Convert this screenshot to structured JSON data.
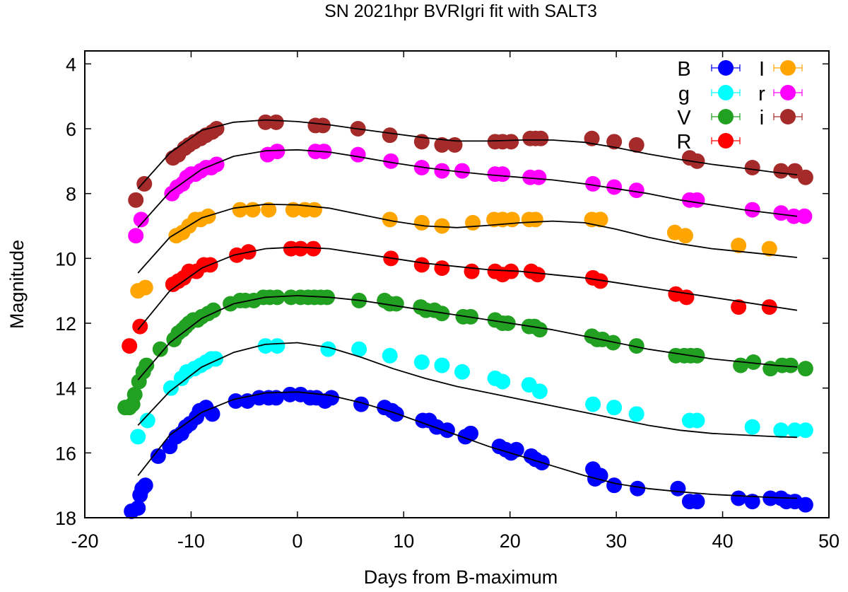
{
  "chart_data": {
    "type": "scatter",
    "title": "SN 2021hpr BVRIgri fit with SALT3",
    "xlabel": "Days from B-maximum",
    "ylabel": "Magnitude",
    "xlim": [
      -20,
      50
    ],
    "ylim": [
      18,
      3.6
    ],
    "y_inverted": true,
    "xticks": [
      -20,
      -10,
      0,
      10,
      20,
      30,
      40,
      50
    ],
    "yticks": [
      4,
      6,
      8,
      10,
      12,
      14,
      16,
      18
    ],
    "grid": false,
    "legend_position": "top-right",
    "fit_line_color": "#000000",
    "series": [
      {
        "name": "B",
        "color": "#0000ff",
        "x": [
          -15.6,
          -15.0,
          -14.8,
          -14.6,
          -14.3,
          -13.1,
          -12.0,
          -11.4,
          -10.9,
          -10.5,
          -10.1,
          -9.5,
          -9.2,
          -8.6,
          -8.0,
          -5.8,
          -4.7,
          -3.6,
          -2.7,
          -2.0,
          -0.7,
          0.3,
          1.2,
          1.8,
          2.6,
          3.2,
          6.0,
          8.2,
          8.9,
          9.3,
          11.8,
          12.4,
          13.1,
          14.1,
          15.8,
          16.3,
          19.0,
          19.6,
          20.1,
          20.6,
          22.0,
          22.4,
          23.0,
          27.8,
          28.0,
          28.5,
          29.8,
          32.0,
          35.8,
          36.9,
          37.6,
          41.5,
          42.8,
          44.5,
          45.5,
          46.0,
          46.8,
          47.8
        ],
        "y": [
          17.8,
          17.7,
          17.3,
          17.1,
          17.0,
          16.1,
          15.8,
          15.5,
          15.4,
          15.2,
          15.1,
          14.9,
          14.7,
          14.6,
          14.8,
          14.4,
          14.4,
          14.3,
          14.3,
          14.3,
          14.2,
          14.2,
          14.3,
          14.3,
          14.4,
          14.3,
          14.5,
          14.6,
          14.7,
          14.8,
          15.0,
          15.0,
          15.2,
          15.3,
          15.5,
          15.4,
          15.8,
          15.9,
          16.0,
          15.9,
          16.1,
          16.2,
          16.3,
          16.5,
          16.8,
          16.7,
          17.0,
          17.1,
          17.1,
          17.5,
          17.5,
          17.4,
          17.5,
          17.4,
          17.4,
          17.5,
          17.5,
          17.6
        ]
      },
      {
        "name": "g",
        "color": "#00ffff",
        "x": [
          -15.0,
          -14.1,
          -11.9,
          -10.9,
          -10.4,
          -9.7,
          -9.1,
          -8.6,
          -8.1,
          -7.7,
          -3.0,
          -1.9,
          2.9,
          5.8,
          8.7,
          11.7,
          13.6,
          15.5,
          18.6,
          19.3,
          21.8,
          22.8,
          27.8,
          29.8,
          31.9,
          36.9,
          37.6,
          42.8,
          45.5,
          46.8,
          47.8
        ],
        "y": [
          15.5,
          15.0,
          14.0,
          13.7,
          13.5,
          13.4,
          13.3,
          13.2,
          13.1,
          13.1,
          12.7,
          12.7,
          12.8,
          12.8,
          13.0,
          13.2,
          13.3,
          13.5,
          13.7,
          13.8,
          13.9,
          14.1,
          14.5,
          14.6,
          14.8,
          15.0,
          15.0,
          15.2,
          15.3,
          15.3,
          15.3
        ],
        "fit_x": [
          -15,
          -12,
          -9,
          -6,
          -3,
          0,
          3,
          6,
          9,
          12,
          15,
          18,
          21,
          24,
          27,
          30,
          33,
          36,
          39,
          42,
          45,
          47
        ],
        "fit_y": [
          15.15,
          14.1,
          13.35,
          12.9,
          12.65,
          12.6,
          12.75,
          13.05,
          13.4,
          13.7,
          13.95,
          14.15,
          14.35,
          14.55,
          14.75,
          14.95,
          15.15,
          15.3,
          15.4,
          15.45,
          15.5,
          15.52
        ]
      },
      {
        "name": "V",
        "color": "#22a022",
        "x": [
          -16.2,
          -15.8,
          -15.5,
          -15.3,
          -14.9,
          -14.5,
          -14.2,
          -12.9,
          -11.6,
          -11.2,
          -10.8,
          -10.5,
          -10.2,
          -9.8,
          -9.4,
          -9.0,
          -8.4,
          -7.9,
          -6.3,
          -5.4,
          -4.9,
          -4.1,
          -3.2,
          -2.6,
          -1.9,
          -0.6,
          0.3,
          1.0,
          1.6,
          2.2,
          2.8,
          5.8,
          8.2,
          8.7,
          9.3,
          11.6,
          12.1,
          12.9,
          13.6,
          15.6,
          16.3,
          18.6,
          19.3,
          19.8,
          21.8,
          22.3,
          22.8,
          27.7,
          28.2,
          28.7,
          29.7,
          31.9,
          35.6,
          36.4,
          37.0,
          37.6,
          41.7,
          42.9,
          44.5,
          45.6,
          46.4,
          47.8
        ],
        "y": [
          14.6,
          14.6,
          14.5,
          14.2,
          13.8,
          13.5,
          13.3,
          12.8,
          12.5,
          12.3,
          12.2,
          12.1,
          12.0,
          11.9,
          11.9,
          11.8,
          11.7,
          11.6,
          11.4,
          11.3,
          11.3,
          11.3,
          11.2,
          11.2,
          11.2,
          11.2,
          11.2,
          11.2,
          11.2,
          11.2,
          11.2,
          11.3,
          11.3,
          11.4,
          11.4,
          11.5,
          11.6,
          11.6,
          11.7,
          11.8,
          11.8,
          11.9,
          12.0,
          12.0,
          12.1,
          12.1,
          12.2,
          12.4,
          12.5,
          12.5,
          12.6,
          12.7,
          13.0,
          13.0,
          13.0,
          13.0,
          13.3,
          13.2,
          13.4,
          13.3,
          13.3,
          13.4
        ],
        "fit_x": [
          -15,
          -12,
          -9,
          -6,
          -3,
          0,
          3,
          6,
          9,
          12,
          15,
          18,
          21,
          24,
          27,
          30,
          33,
          36,
          39,
          42,
          45,
          47
        ],
        "fit_y": [
          13.75,
          12.6,
          11.85,
          11.4,
          11.2,
          11.15,
          11.2,
          11.3,
          11.45,
          11.6,
          11.75,
          11.9,
          12.05,
          12.2,
          12.4,
          12.6,
          12.8,
          12.95,
          13.1,
          13.2,
          13.3,
          13.35
        ]
      },
      {
        "name": "R",
        "color": "#ff0000",
        "x": [
          -15.8,
          -14.8,
          -11.7,
          -11.2,
          -10.7,
          -10.2,
          -9.5,
          -8.8,
          -8.2,
          -5.7,
          -4.6,
          -0.6,
          0.3,
          1.5,
          8.8,
          11.7,
          13.6,
          16.4,
          18.6,
          19.3,
          20.1,
          22.0,
          22.6,
          27.8,
          28.5,
          35.6,
          36.6,
          41.5,
          44.4
        ],
        "y": [
          12.7,
          12.1,
          10.8,
          10.7,
          10.6,
          10.4,
          10.4,
          10.2,
          10.2,
          9.9,
          9.8,
          9.7,
          9.7,
          9.7,
          10.0,
          10.2,
          10.3,
          10.4,
          10.4,
          10.5,
          10.4,
          10.4,
          10.5,
          10.6,
          10.7,
          11.1,
          11.2,
          11.5,
          11.5
        ],
        "fit_x": [
          -15,
          -12,
          -9,
          -6,
          -3,
          0,
          3,
          6,
          9,
          12,
          15,
          18,
          21,
          24,
          27,
          30,
          33,
          36,
          39,
          42,
          45,
          47
        ],
        "fit_y": [
          12.2,
          11.0,
          10.3,
          9.9,
          9.7,
          9.65,
          9.7,
          9.85,
          10.0,
          10.15,
          10.25,
          10.35,
          10.4,
          10.5,
          10.6,
          10.75,
          10.9,
          11.05,
          11.2,
          11.35,
          11.5,
          11.6
        ]
      },
      {
        "name": "I",
        "color": "#ffa500",
        "x": [
          -15.0,
          -14.3,
          -11.4,
          -10.8,
          -10.2,
          -9.6,
          -9.1,
          -8.4,
          -5.4,
          -4.2,
          -2.7,
          -0.4,
          0.7,
          1.6,
          8.7,
          11.7,
          13.6,
          16.5,
          18.5,
          19.3,
          20.2,
          21.8,
          22.4,
          27.7,
          28.5,
          35.5,
          36.5,
          41.5,
          44.4
        ],
        "y": [
          11.0,
          10.9,
          9.3,
          9.2,
          9.0,
          8.8,
          8.8,
          8.7,
          8.5,
          8.5,
          8.5,
          8.5,
          8.5,
          8.5,
          8.8,
          8.9,
          9.0,
          8.9,
          8.8,
          8.8,
          8.8,
          8.8,
          8.8,
          8.8,
          8.8,
          9.2,
          9.3,
          9.6,
          9.7
        ],
        "fit_x": [
          -15,
          -12,
          -9,
          -6,
          -3,
          0,
          3,
          6,
          9,
          12,
          15,
          18,
          21,
          24,
          27,
          30,
          33,
          36,
          39,
          42,
          45,
          47
        ],
        "fit_y": [
          10.45,
          9.35,
          8.75,
          8.45,
          8.33,
          8.35,
          8.45,
          8.65,
          8.85,
          9.0,
          9.05,
          8.98,
          8.9,
          8.85,
          8.9,
          9.1,
          9.35,
          9.55,
          9.7,
          9.8,
          9.9,
          9.97
        ]
      },
      {
        "name": "r",
        "color": "#ff00ff",
        "x": [
          -15.2,
          -14.7,
          -11.8,
          -11.3,
          -10.8,
          -10.4,
          -10.0,
          -9.6,
          -9.1,
          -8.6,
          -8.1,
          -7.6,
          -2.8,
          -1.9,
          1.7,
          2.5,
          5.7,
          8.8,
          11.7,
          13.6,
          15.5,
          18.6,
          19.3,
          21.9,
          22.7,
          27.8,
          29.8,
          31.9,
          36.9,
          37.6,
          42.8,
          45.5,
          46.7,
          47.7
        ],
        "y": [
          9.3,
          8.8,
          8.0,
          7.8,
          7.7,
          7.5,
          7.4,
          7.4,
          7.3,
          7.2,
          7.2,
          7.1,
          6.8,
          6.7,
          6.7,
          6.7,
          6.8,
          7.0,
          7.2,
          7.3,
          7.3,
          7.4,
          7.4,
          7.5,
          7.5,
          7.7,
          7.8,
          7.9,
          8.2,
          8.2,
          8.5,
          8.6,
          8.7,
          8.7
        ],
        "fit_x": [
          -15,
          -12,
          -9,
          -6,
          -3,
          0,
          3,
          6,
          9,
          12,
          15,
          18,
          21,
          24,
          27,
          30,
          33,
          36,
          39,
          42,
          45,
          47
        ],
        "fit_y": [
          9.05,
          7.95,
          7.25,
          6.85,
          6.68,
          6.65,
          6.72,
          6.88,
          7.05,
          7.2,
          7.32,
          7.42,
          7.5,
          7.58,
          7.7,
          7.85,
          8.0,
          8.2,
          8.35,
          8.5,
          8.62,
          8.7
        ]
      },
      {
        "name": "i",
        "color": "#a52a2a",
        "x": [
          -15.2,
          -14.4,
          -11.7,
          -11.2,
          -10.6,
          -10.2,
          -9.7,
          -9.1,
          -8.6,
          -8.0,
          -7.6,
          -3.0,
          -2.0,
          1.7,
          2.4,
          5.7,
          8.7,
          11.7,
          13.6,
          14.8,
          18.6,
          19.3,
          20.1,
          21.9,
          22.4,
          22.9,
          27.7,
          29.8,
          31.9,
          36.9,
          37.6,
          42.8,
          45.5,
          46.8,
          47.8
        ],
        "y": [
          8.2,
          7.7,
          6.9,
          6.8,
          6.6,
          6.5,
          6.4,
          6.3,
          6.2,
          6.1,
          6.0,
          5.8,
          5.8,
          5.9,
          5.9,
          6.0,
          6.2,
          6.4,
          6.5,
          6.5,
          6.4,
          6.4,
          6.4,
          6.3,
          6.3,
          6.3,
          6.3,
          6.4,
          6.5,
          6.9,
          7.0,
          7.2,
          7.3,
          7.3,
          7.5
        ],
        "fit_x": [
          -15,
          -12,
          -9,
          -6,
          -3,
          0,
          3,
          6,
          9,
          12,
          15,
          18,
          21,
          24,
          27,
          30,
          33,
          36,
          39,
          42,
          45,
          47
        ],
        "fit_y": [
          7.85,
          6.75,
          6.05,
          5.8,
          5.73,
          5.78,
          5.88,
          6.02,
          6.15,
          6.28,
          6.38,
          6.38,
          6.35,
          6.35,
          6.42,
          6.58,
          6.78,
          6.95,
          7.1,
          7.22,
          7.35,
          7.42
        ]
      }
    ],
    "B_fit_x": [
      -15,
      -12,
      -9,
      -6,
      -3,
      0,
      3,
      6,
      9,
      12,
      15,
      18,
      21,
      24,
      27,
      30,
      33,
      36,
      39,
      42,
      45,
      47
    ],
    "B_fit_y": [
      16.7,
      15.45,
      14.75,
      14.35,
      14.15,
      14.12,
      14.22,
      14.45,
      14.75,
      15.1,
      15.45,
      15.8,
      16.1,
      16.4,
      16.7,
      16.95,
      17.1,
      17.2,
      17.28,
      17.33,
      17.38,
      17.4
    ],
    "legend_columns": [
      [
        "B",
        "g",
        "V",
        "R"
      ],
      [
        "I",
        "r",
        "i"
      ]
    ]
  }
}
